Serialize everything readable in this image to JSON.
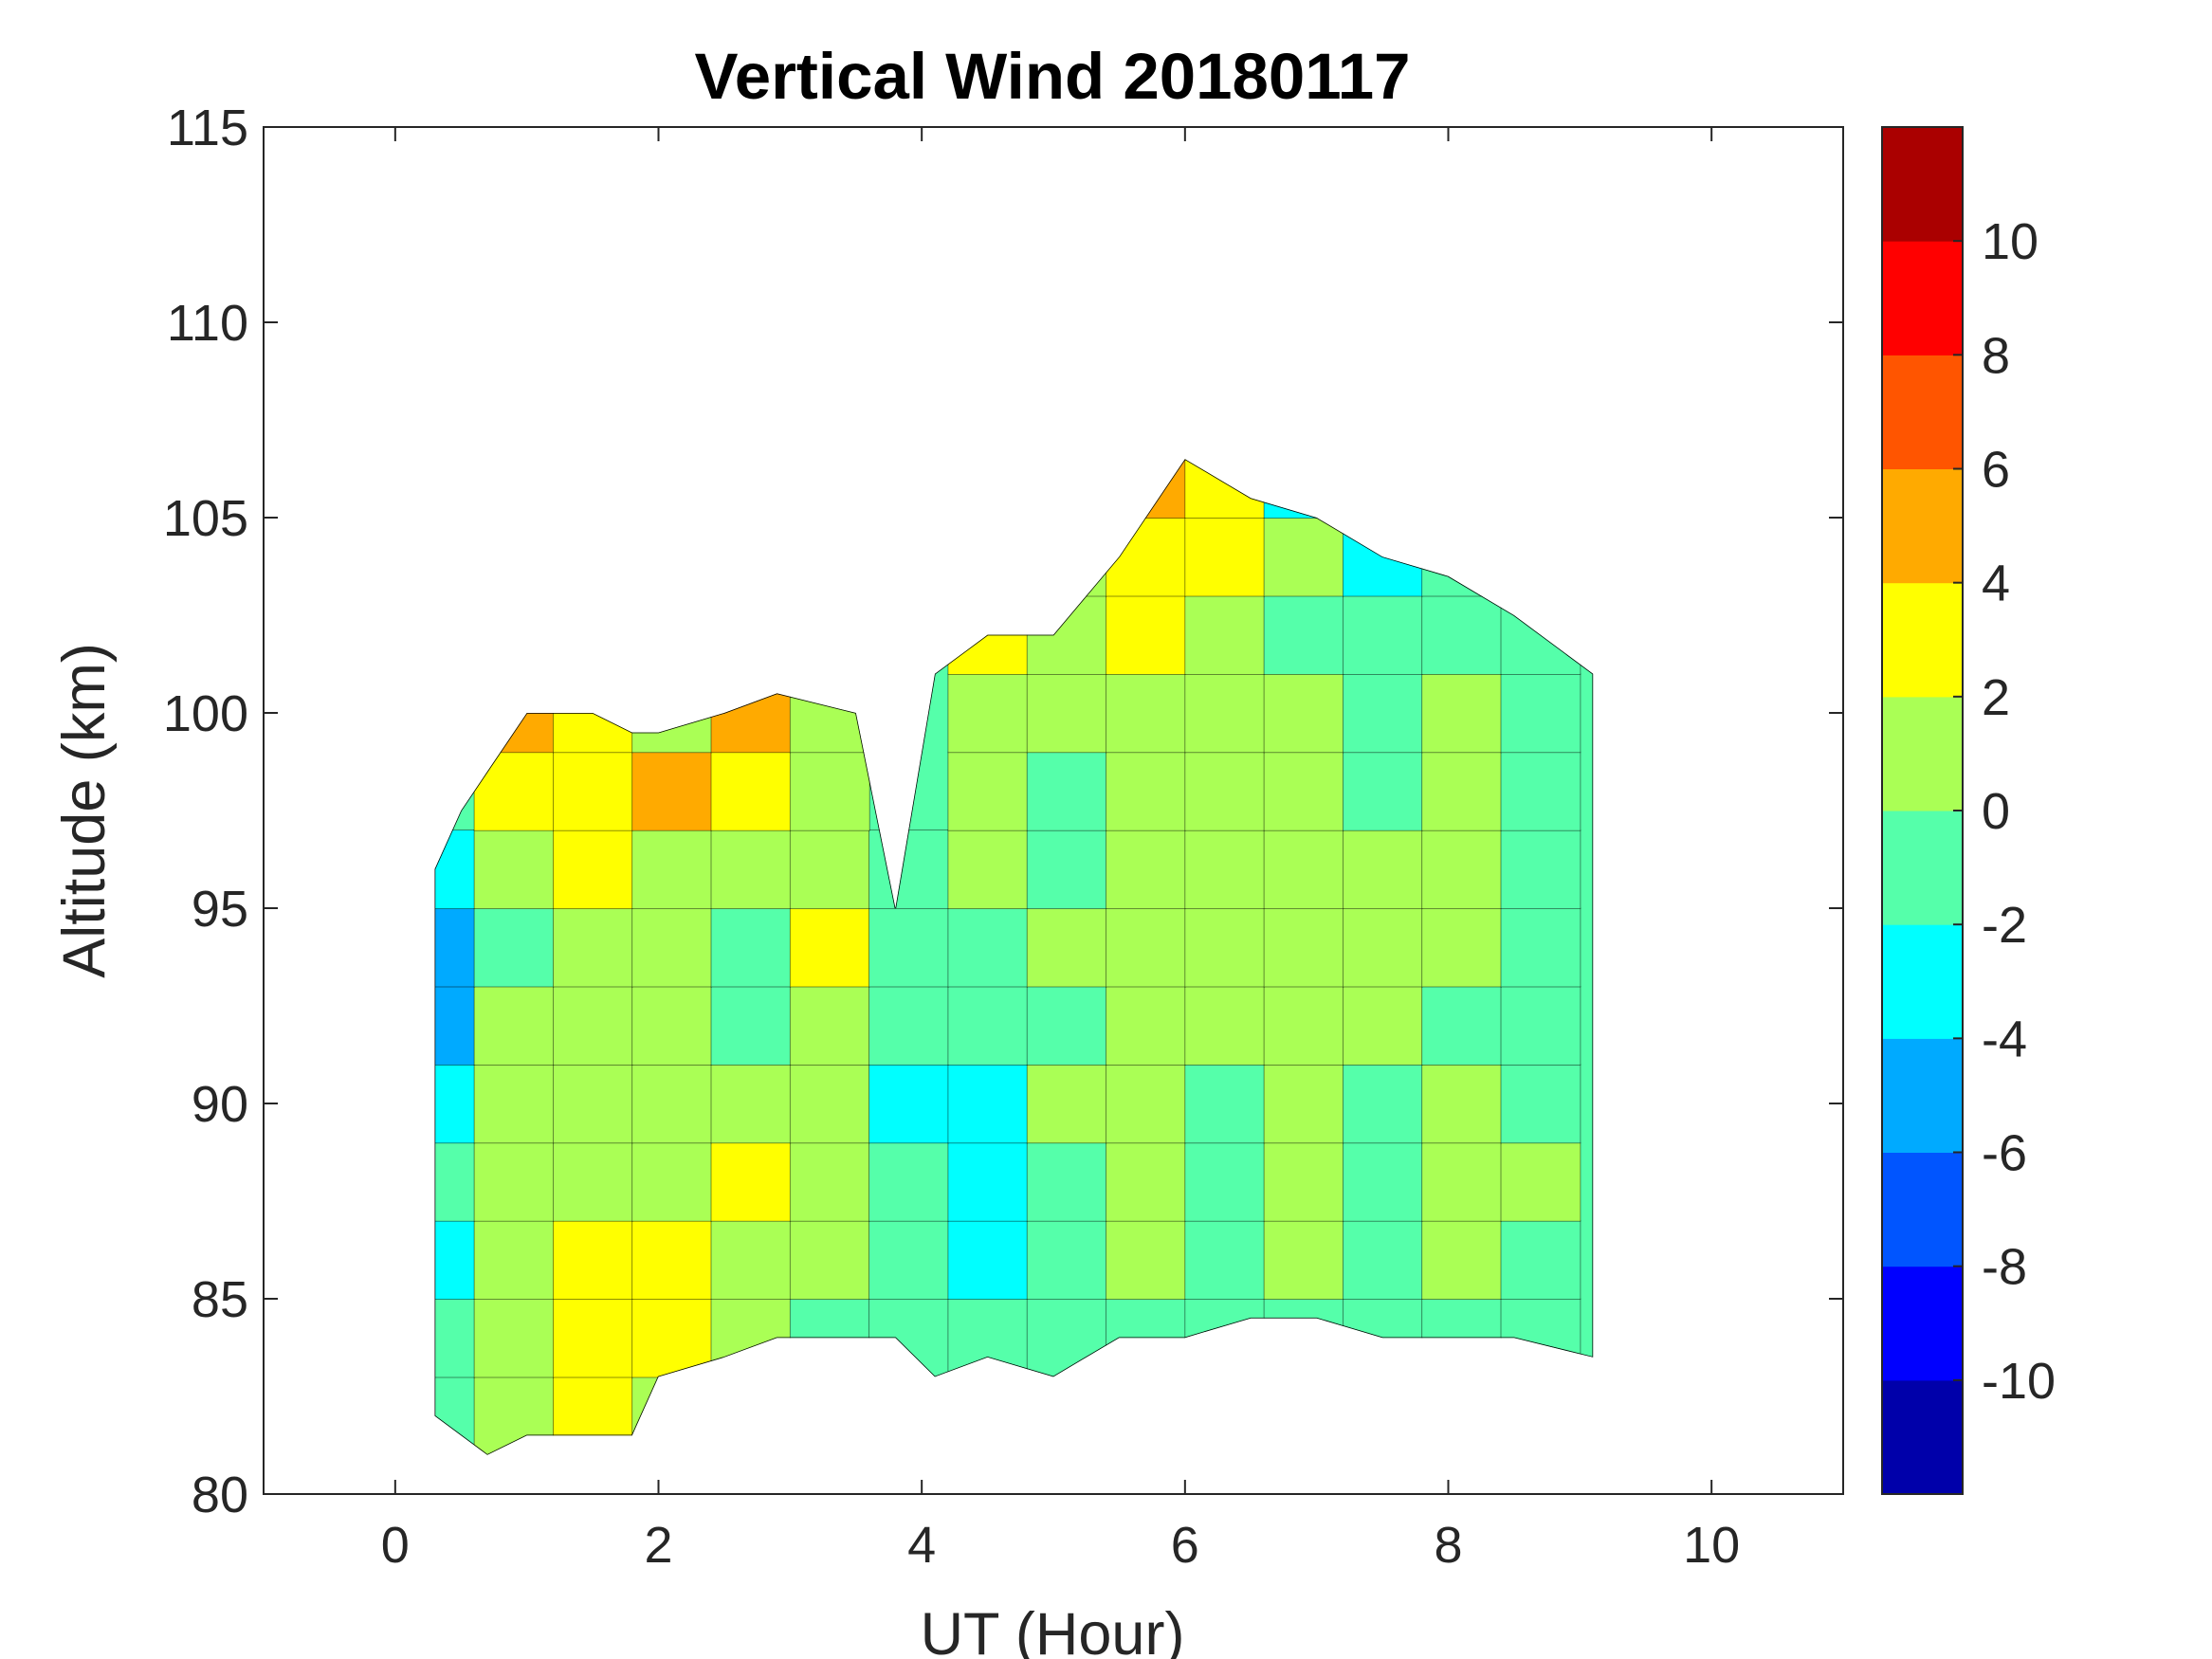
{
  "chart_data": {
    "type": "heatmap",
    "title": "Vertical Wind 20180117",
    "xlabel": "UT (Hour)",
    "ylabel": "Altitude (km)",
    "xlim": [
      -1,
      11
    ],
    "ylim": [
      80,
      115
    ],
    "xticks": [
      0,
      2,
      4,
      6,
      8,
      10
    ],
    "yticks": [
      80,
      85,
      90,
      95,
      100,
      105,
      110,
      115
    ],
    "grid": false,
    "colorbar": {
      "location": "right",
      "range": [
        -12,
        12
      ],
      "levels": [
        -12,
        -10,
        -8,
        -6,
        -4,
        -2,
        0,
        2,
        4,
        6,
        8,
        10,
        12
      ],
      "ticks": [
        -10,
        -8,
        -6,
        -4,
        -2,
        0,
        2,
        4,
        6,
        8,
        10
      ],
      "colors": [
        "#0000aa",
        "#0000ff",
        "#0055ff",
        "#00aaff",
        "#00ffff",
        "#55ffaa",
        "#aaff55",
        "#ffff00",
        "#ffaa00",
        "#ff5500",
        "#ff0000",
        "#aa0000"
      ]
    },
    "coverage": {
      "x": [
        0.3,
        0.5,
        0.7,
        1.0,
        1.5,
        1.8,
        2.0,
        2.5,
        2.9,
        3.5,
        3.8,
        4.1,
        4.5,
        5.0,
        5.5,
        6.0,
        6.5,
        7.0,
        7.5,
        8.0,
        8.5,
        9.1
      ],
      "bottom": [
        82.0,
        81.5,
        81.0,
        81.5,
        81.5,
        81.5,
        83.0,
        83.5,
        84.0,
        84.0,
        84.0,
        83.0,
        83.5,
        83.0,
        84.0,
        84.0,
        84.5,
        84.5,
        84.0,
        84.0,
        84.0,
        83.5
      ],
      "top": [
        96.0,
        97.5,
        98.5,
        100.0,
        100.0,
        99.5,
        99.5,
        100.0,
        100.5,
        100.0,
        95.0,
        101.0,
        102.0,
        102.0,
        104.0,
        106.5,
        105.5,
        105.0,
        104.0,
        103.5,
        102.5,
        101.0
      ]
    },
    "x": [
      0.3,
      0.9,
      1.5,
      2.1,
      2.7,
      3.3,
      3.9,
      4.5,
      5.1,
      5.7,
      6.3,
      6.9,
      7.5,
      8.1,
      8.7
    ],
    "y": [
      82,
      84,
      86,
      88,
      90,
      92,
      94,
      96,
      98,
      100,
      102,
      104,
      106
    ],
    "z": [
      [
        -2,
        0,
        2,
        1,
        0,
        -1,
        null,
        null,
        null,
        null,
        null,
        null,
        null,
        null,
        null
      ],
      [
        -1,
        1,
        3,
        2,
        1,
        -1,
        -1,
        -2,
        -1,
        -1,
        -1,
        -1,
        -1,
        -1,
        -1
      ],
      [
        -3,
        0,
        2,
        3,
        0,
        0,
        -1,
        -3,
        -1,
        0,
        -1,
        0,
        -1,
        0,
        -1
      ],
      [
        -2,
        1,
        1,
        0,
        2,
        1,
        -2,
        -3,
        -1,
        1,
        -1,
        0,
        -1,
        1,
        0
      ],
      [
        -4,
        0,
        1,
        1,
        0,
        1,
        -3,
        -3,
        0,
        1,
        -1,
        0,
        -1,
        0,
        -1
      ],
      [
        -5,
        0,
        0,
        1,
        -1,
        0,
        -2,
        -1,
        -1,
        0,
        1,
        1,
        0,
        -1,
        -1
      ],
      [
        -6,
        -1,
        1,
        0,
        -1,
        2,
        -2,
        -1,
        0,
        1,
        0,
        1,
        1,
        0,
        -1
      ],
      [
        -4,
        0,
        2,
        1,
        1,
        1,
        -1,
        0,
        -1,
        0,
        1,
        1,
        0,
        0,
        -1
      ],
      [
        null,
        2,
        3,
        4,
        3,
        1,
        null,
        0,
        -1,
        1,
        0,
        0,
        -1,
        0,
        -1
      ],
      [
        null,
        4,
        3,
        1,
        4,
        0,
        null,
        1,
        0,
        1,
        0,
        0,
        -2,
        1,
        -1
      ],
      [
        null,
        null,
        null,
        null,
        null,
        null,
        null,
        2,
        0,
        2,
        1,
        -1,
        -2,
        -2,
        -1
      ],
      [
        null,
        null,
        null,
        null,
        null,
        null,
        null,
        null,
        1,
        3,
        2,
        0,
        -3,
        -1,
        null
      ],
      [
        null,
        null,
        null,
        null,
        null,
        null,
        null,
        null,
        null,
        5,
        2,
        -3,
        null,
        null,
        null
      ]
    ]
  }
}
